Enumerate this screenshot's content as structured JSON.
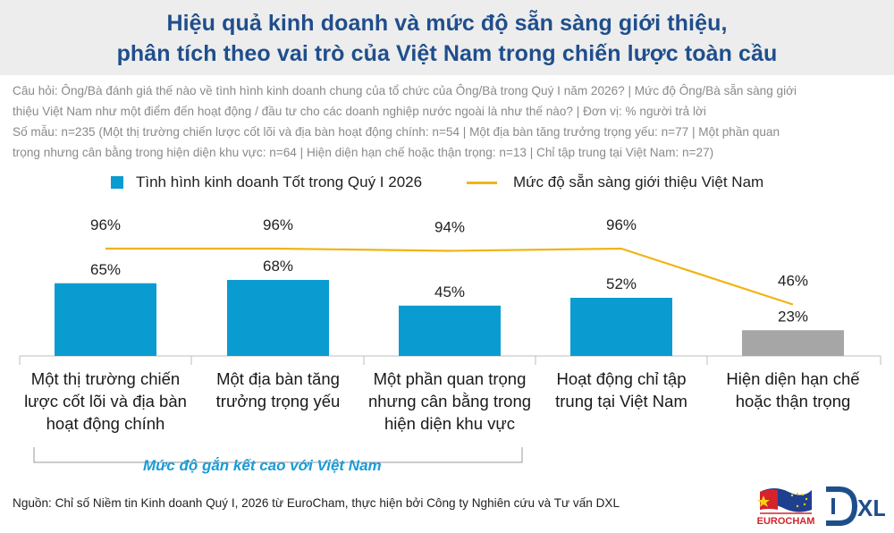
{
  "title_lines": [
    "Hiệu quả kinh doanh và mức độ sẵn sàng giới thiệu,",
    "phân tích theo vai trò của Việt Nam trong chiến lược toàn cầu"
  ],
  "notes": [
    "Câu hỏi: Ông/Bà đánh giá thế nào về tình hình kinh doanh chung của tổ chức của Ông/Bà trong Quý I năm 2026? | Mức độ Ông/Bà sẵn sàng giới",
    "thiệu Việt Nam như một điểm đến hoạt động / đầu tư cho các doanh nghiệp nước ngoài là như thế nào? | Đơn vị: % người trả lời",
    "Số mẫu: n=235 (Một thị trường chiến lược cốt lõi và địa bàn hoạt động chính: n=54 | Một địa bàn tăng trưởng trọng yếu: n=77 | Một phần quan",
    "trọng nhưng cân bằng trong hiện diện khu vực: n=64 | Hiện diện hạn chế hoặc thận trọng: n=13 | Chỉ tập trung tại Việt Nam: n=27)"
  ],
  "legend": {
    "bar_label": "Tình hình kinh doanh Tốt trong Quý I 2026",
    "line_label": "Mức độ sẵn sàng giới thiệu Việt Nam"
  },
  "bracket_label": "Mức độ gắn kết cao với Việt Nam",
  "source": "Nguồn: Chỉ số Niềm tin Kinh doanh Quý I, 2026 từ EuroCham, thực hiện bởi Công ty Nghiên cứu và Tư vấn DXL",
  "logos": {
    "eurocham": "EUROCHAM",
    "dxl": "XL"
  },
  "colors": {
    "bar": "#0a9cd0",
    "bar_muted": "#a6a6a6",
    "line": "#f0b413",
    "title": "#1f4e8c",
    "bracket_label": "#1a9bd7"
  },
  "chart_data": {
    "type": "bar",
    "categories": [
      [
        "Một thị trường chiến",
        "lược cốt lõi và địa bàn",
        "hoạt động chính"
      ],
      [
        "Một địa bàn tăng",
        "trưởng trọng yếu"
      ],
      [
        "Một phần quan trọng",
        "nhưng cân bằng trong",
        "hiện diện khu vực"
      ],
      [
        "Hoạt động chỉ tập",
        "trung tại Việt Nam"
      ],
      [
        "Hiện diện hạn chế",
        "hoặc thận trọng"
      ]
    ],
    "series": [
      {
        "name": "Tình hình kinh doanh Tốt trong Quý I 2026",
        "type": "bar",
        "values": [
          65,
          68,
          45,
          52,
          23
        ],
        "labels": [
          "65%",
          "68%",
          "45%",
          "52%",
          "23%"
        ],
        "muted": [
          false,
          false,
          false,
          false,
          true
        ]
      },
      {
        "name": "Mức độ sẵn sàng giới thiệu Việt Nam",
        "type": "line",
        "values": [
          96,
          96,
          94,
          96,
          46
        ],
        "labels": [
          "96%",
          "96%",
          "94%",
          "96%",
          "46%"
        ]
      }
    ],
    "ylim": [
      0,
      100
    ],
    "unit": "%",
    "grid": false
  }
}
